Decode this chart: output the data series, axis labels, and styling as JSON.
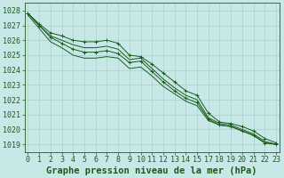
{
  "title": "Graphe pression niveau de la mer (hPa)",
  "bg_color": "#c8e8e8",
  "grid_color": "#a8d0d0",
  "line_color": "#1a5c1a",
  "ylim": [
    1018.5,
    1028.5
  ],
  "yticks": [
    1019,
    1020,
    1021,
    1022,
    1023,
    1024,
    1025,
    1026,
    1027,
    1028
  ],
  "xtick_labels": [
    "0",
    "1",
    "2",
    "3",
    "4",
    "5",
    "6",
    "7",
    "8",
    "9",
    "10",
    "11",
    "12",
    "13",
    "14",
    "15",
    "17",
    "18",
    "19",
    "20",
    "21",
    "22",
    "23"
  ],
  "lines": [
    {
      "y": [
        1027.8,
        1027.1,
        1026.5,
        1026.3,
        1026.0,
        1025.9,
        1025.9,
        1026.0,
        1025.8,
        1025.0,
        1024.9,
        1024.4,
        1023.8,
        1023.2,
        1022.6,
        1022.3,
        1021.1,
        1020.5,
        1020.4,
        1020.2,
        1019.9,
        1019.4,
        1019.1
      ],
      "marker": true
    },
    {
      "y": [
        1027.8,
        1027.0,
        1026.3,
        1026.0,
        1025.7,
        1025.5,
        1025.5,
        1025.6,
        1025.4,
        1024.7,
        1024.8,
        1024.1,
        1023.4,
        1022.8,
        1022.3,
        1022.0,
        1020.8,
        1020.4,
        1020.3,
        1020.0,
        1019.7,
        1019.2,
        1019.0
      ],
      "marker": false
    },
    {
      "y": [
        1027.8,
        1027.0,
        1026.2,
        1025.8,
        1025.4,
        1025.2,
        1025.2,
        1025.3,
        1025.1,
        1024.5,
        1024.6,
        1023.9,
        1023.2,
        1022.6,
        1022.1,
        1021.8,
        1020.7,
        1020.3,
        1020.2,
        1019.9,
        1019.6,
        1019.1,
        1019.0
      ],
      "marker": true
    },
    {
      "y": [
        1027.7,
        1026.8,
        1025.9,
        1025.5,
        1025.0,
        1024.8,
        1024.8,
        1024.9,
        1024.8,
        1024.1,
        1024.2,
        1023.6,
        1022.9,
        1022.4,
        1021.9,
        1021.6,
        1020.6,
        1020.3,
        1020.2,
        1019.9,
        1019.6,
        1019.1,
        1019.0
      ],
      "marker": false
    }
  ],
  "marker": "+",
  "marker_size": 3.5,
  "title_fontsize": 7.5,
  "tick_fontsize": 6.0
}
